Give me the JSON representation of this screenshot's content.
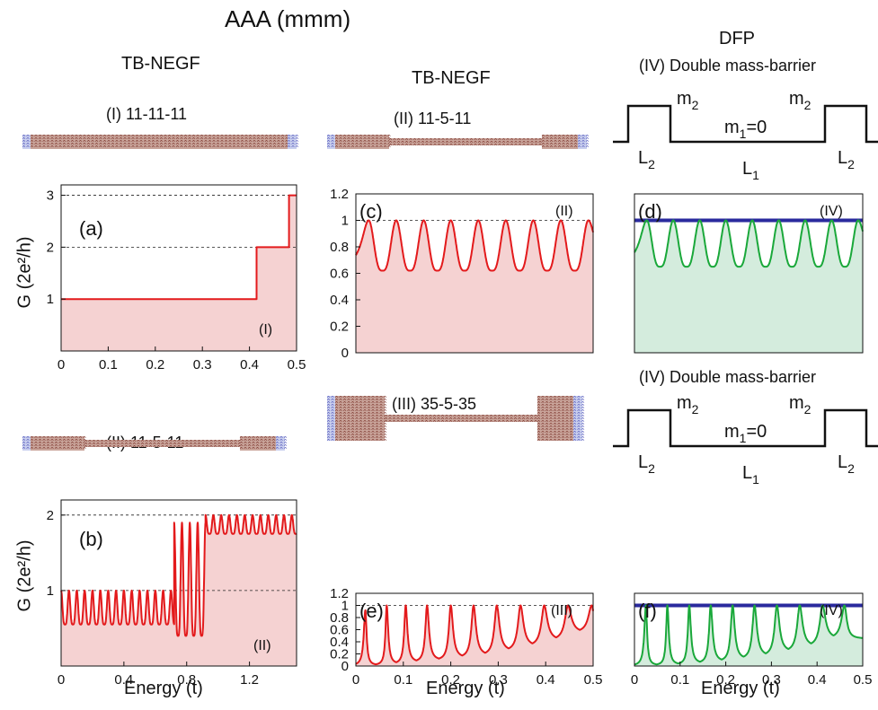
{
  "header": {
    "title": "AAA (mmm)",
    "col1": "TB-NEGF",
    "col2": "TB-NEGF",
    "col3": "DFP",
    "col3_sub": "(IV) Double mass-barrier"
  },
  "structures": {
    "s1": "(I) 11-11-11",
    "s2": "(II) 11-5-11",
    "s3": "(II) 11-5-11",
    "s4": "(III) 35-5-35"
  },
  "barrier_top": {
    "subtitle": "(IV) Double mass-barrier",
    "m2": "m",
    "m2_sub": "2",
    "m1": "m",
    "m1_sub": "1",
    "m1_eq": "=0",
    "L2": "L",
    "L2_sub": "2",
    "L1": "L",
    "L1_sub": "1"
  },
  "barrier_bot": {
    "subtitle": "(IV) Double mass-barrier",
    "m2": "m",
    "m2_sub": "2",
    "m1": "m",
    "m1_sub": "1",
    "m1_eq": "=0",
    "L2": "L",
    "L2_sub": "2",
    "L1": "L",
    "L1_sub": "1"
  },
  "ylabel": "G (2e²/h)",
  "xlabel": "Energy (t)",
  "colors": {
    "red": "#e31a1c",
    "red_fill": "#f5d2d2",
    "green": "#1aa83a",
    "green_fill": "#d4ecdd",
    "blue": "#2a2a9e"
  },
  "chart_data": [
    {
      "id": "a",
      "panel_label": "(a)",
      "case_label": "(I)",
      "type": "line",
      "xlim": [
        0,
        0.5
      ],
      "ylim": [
        0,
        3.2
      ],
      "xticks": [
        "0",
        "0.1",
        "0.2",
        "0.3",
        "0.4",
        "0.5"
      ],
      "yticks": [
        "1",
        "2",
        "3"
      ],
      "dashed_levels": [
        2,
        3
      ],
      "series": [
        {
          "steps": [
            [
              0,
              1
            ],
            [
              0.415,
              1
            ],
            [
              0.415,
              2
            ],
            [
              0.484,
              2
            ],
            [
              0.484,
              3
            ],
            [
              0.5,
              3
            ]
          ]
        }
      ]
    },
    {
      "id": "b",
      "panel_label": "(b)",
      "case_label": "(II)",
      "type": "line",
      "xlim": [
        0,
        1.5
      ],
      "ylim": [
        0,
        2.2
      ],
      "xticks": [
        "0",
        "0.4",
        "0.8",
        "1.2"
      ],
      "yticks": [
        "1",
        "2"
      ],
      "dashed_levels": [
        1,
        2
      ],
      "series": [
        {
          "regions": [
            {
              "x": [
                0,
                0.72
              ],
              "min": 0.55,
              "max": 1.0,
              "period": 0.05
            },
            {
              "x": [
                0.72,
                0.92
              ],
              "min": 0.4,
              "max": 1.9,
              "period": 0.05
            },
            {
              "x": [
                0.92,
                1.5
              ],
              "min": 1.75,
              "max": 2.0,
              "period": 0.05
            }
          ]
        }
      ]
    },
    {
      "id": "c",
      "panel_label": "(c)",
      "case_label": "(II)",
      "type": "line",
      "xlim": [
        0,
        0.5
      ],
      "ylim": [
        0,
        1.2
      ],
      "yticks": [
        "0",
        "0.2",
        "0.4",
        "0.6",
        "0.8",
        "1",
        "1.2"
      ],
      "dashed_levels": [
        1
      ],
      "series": [
        {
          "peaks_x": [
            0.027,
            0.085,
            0.143,
            0.2,
            0.258,
            0.316,
            0.374,
            0.432,
            0.49
          ],
          "min": 0.62,
          "max": 1.0
        }
      ]
    },
    {
      "id": "d",
      "panel_label": "(d)",
      "case_label": "(IV)",
      "type": "line",
      "xlim": [
        0,
        0.5
      ],
      "ylim": [
        0,
        1.2
      ],
      "dashed_levels": [
        1
      ],
      "series": [
        {
          "name": "",
          "constant": 1.0,
          "color": "blue"
        },
        {
          "peaks_x": [
            0.027,
            0.085,
            0.143,
            0.2,
            0.258,
            0.316,
            0.374,
            0.432,
            0.49
          ],
          "min": 0.65,
          "max": 1.0,
          "color": "green"
        }
      ]
    },
    {
      "id": "e",
      "panel_label": "(e)",
      "case_label": "(III)",
      "type": "line",
      "xlim": [
        0,
        0.5
      ],
      "ylim": [
        0,
        1.2
      ],
      "xticks": [
        "0",
        "0.1",
        "0.2",
        "0.3",
        "0.4",
        "0.5"
      ],
      "yticks": [
        "0",
        "0.2",
        "0.4",
        "0.6",
        "0.8",
        "1",
        "1.2"
      ],
      "dashed_levels": [
        1
      ],
      "series": [
        {
          "peaks_x": [
            0.02,
            0.065,
            0.105,
            0.15,
            0.2,
            0.248,
            0.297,
            0.347,
            0.397,
            0.447,
            0.497
          ],
          "peak_heights": [
            0.92,
            1,
            1,
            1,
            1,
            1,
            1,
            1,
            1,
            1,
            1
          ],
          "mins": [
            0.0,
            0.01,
            0.03,
            0.06,
            0.09,
            0.13,
            0.17,
            0.24,
            0.32,
            0.42,
            0.55
          ]
        }
      ]
    },
    {
      "id": "f",
      "panel_label": "(f)",
      "case_label": "(IV)",
      "type": "line",
      "xlim": [
        0,
        0.5
      ],
      "ylim": [
        0,
        1.2
      ],
      "xticks": [
        "0",
        "0.1",
        "0.2",
        "0.3",
        "0.4",
        "0.5"
      ],
      "dashed_levels": [
        1
      ],
      "series": [
        {
          "constant": 1.0,
          "color": "blue"
        },
        {
          "peaks_x": [
            0.025,
            0.072,
            0.12,
            0.167,
            0.215,
            0.263,
            0.312,
            0.362,
            0.412,
            0.46
          ],
          "peak_heights": [
            1,
            1,
            1,
            1,
            1,
            1,
            1,
            1,
            1,
            1
          ],
          "mins": [
            0.0,
            0.01,
            0.02,
            0.04,
            0.07,
            0.11,
            0.16,
            0.23,
            0.32,
            0.45
          ],
          "color": "green"
        }
      ]
    }
  ]
}
